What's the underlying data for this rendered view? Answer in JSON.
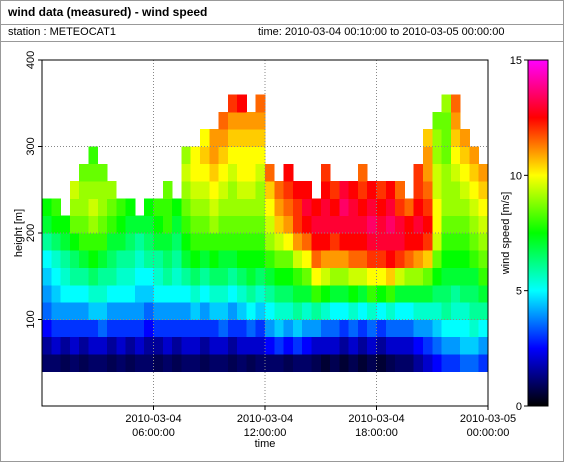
{
  "chart_data": {
    "type": "heatmap",
    "title": "wind data (measured) - wind speed",
    "station": "station : METEOCAT1",
    "period": "time: 2010-03-04 00:10:00 to 2010-03-05 00:00:00",
    "xlabel": "time",
    "ylabel": "height [m]",
    "zlabel": "wind speed [m/s]",
    "xlim": [
      0,
      24
    ],
    "xticks": [
      {
        "value": 6,
        "label": "2010-03-04 06:00:00"
      },
      {
        "value": 12,
        "label": "2010-03-04 12:00:00"
      },
      {
        "value": 18,
        "label": "2010-03-04 18:00:00"
      },
      {
        "value": 24,
        "label": "2010-03-05 00:00:00"
      }
    ],
    "ylim": [
      0,
      400
    ],
    "yticks": [
      100,
      200,
      300,
      400
    ],
    "zlim": [
      0,
      15
    ],
    "zticks": [
      0,
      5,
      10,
      15
    ],
    "grid": true,
    "colors": [
      "#000000",
      "#00007f",
      "#0000ff",
      "#0080ff",
      "#00ffff",
      "#00ff80",
      "#00ff00",
      "#80ff00",
      "#ffff00",
      "#ff8000",
      "#ff0000",
      "#ff0080",
      "#ff00ff"
    ],
    "x": [
      0.25,
      0.75,
      1.25,
      1.75,
      2.25,
      2.75,
      3.25,
      3.75,
      4.25,
      4.75,
      5.25,
      5.75,
      6.25,
      6.75,
      7.25,
      7.75,
      8.25,
      8.75,
      9.25,
      9.75,
      10.25,
      10.75,
      11.25,
      11.75,
      12.25,
      12.75,
      13.25,
      13.75,
      14.25,
      14.75,
      15.25,
      15.75,
      16.25,
      16.75,
      17.25,
      17.75,
      18.25,
      18.75,
      19.25,
      19.75,
      20.25,
      20.75,
      21.25,
      21.75,
      22.25,
      22.75,
      23.25,
      23.75
    ],
    "y": [
      50,
      70,
      90,
      110,
      130,
      150,
      170,
      190,
      210,
      230,
      250,
      270,
      290,
      310,
      330,
      350
    ],
    "z": [
      [
        1,
        1.5,
        2.5,
        3.5,
        4,
        4.5,
        5,
        6,
        7,
        7.5,
        null,
        null,
        null,
        null,
        null,
        null
      ],
      [
        1,
        2,
        3,
        4,
        4.5,
        5,
        5.5,
        6.5,
        7.5,
        8,
        null,
        null,
        null,
        null,
        null,
        null
      ],
      [
        0.8,
        1.5,
        3,
        4,
        5,
        5.5,
        6,
        7,
        7.5,
        null,
        null,
        null,
        null,
        null,
        null,
        null
      ],
      [
        1,
        2,
        3,
        4,
        5,
        6,
        6.5,
        7.5,
        8.5,
        9,
        9.5,
        null,
        null,
        null,
        null,
        null
      ],
      [
        0.8,
        1.5,
        3,
        4,
        5,
        6,
        7,
        8,
        8.5,
        9,
        9,
        8.5,
        null,
        null,
        null,
        null
      ],
      [
        1,
        2,
        3,
        4.5,
        5.5,
        6.5,
        7.5,
        8,
        9,
        9.5,
        9,
        8.5,
        8,
        null,
        null,
        null
      ],
      [
        1,
        2,
        3.5,
        4.5,
        5.5,
        6,
        7,
        8,
        8.5,
        9,
        9,
        8.5,
        null,
        null,
        null,
        null
      ],
      [
        0.8,
        1.5,
        3,
        4,
        5,
        6,
        6.5,
        7,
        8,
        8.5,
        9,
        null,
        null,
        null,
        null,
        null
      ],
      [
        1,
        2,
        3,
        4,
        5,
        5.5,
        6,
        7,
        7.5,
        8,
        null,
        null,
        null,
        null,
        null,
        null
      ],
      [
        0.8,
        1.5,
        3,
        4,
        5,
        5.5,
        6,
        6.5,
        7,
        7.5,
        null,
        null,
        null,
        null,
        null,
        null
      ],
      [
        1,
        2,
        3,
        4,
        4.5,
        5,
        5.5,
        6,
        7,
        null,
        null,
        null,
        null,
        null,
        null,
        null
      ],
      [
        1,
        1.5,
        2.5,
        3.5,
        4.5,
        5,
        6,
        6.5,
        7,
        7.5,
        null,
        null,
        null,
        null,
        null,
        null
      ],
      [
        0.8,
        1.5,
        3,
        4,
        5,
        5.5,
        6,
        7,
        7.5,
        8,
        null,
        null,
        null,
        null,
        null,
        null
      ],
      [
        1,
        2,
        3,
        4,
        5,
        6,
        6.5,
        7,
        8,
        8,
        8.5,
        null,
        null,
        null,
        null,
        null
      ],
      [
        0.8,
        1.5,
        3,
        4,
        5,
        5.5,
        6,
        6.5,
        7,
        7.5,
        null,
        null,
        null,
        null,
        null,
        null
      ],
      [
        1,
        2,
        3,
        4,
        5,
        6,
        7,
        7.5,
        8,
        8.5,
        9,
        9.5,
        9,
        null,
        null,
        null
      ],
      [
        1,
        2,
        3,
        4.5,
        5.5,
        6.5,
        7.5,
        8,
        8.5,
        9,
        9.5,
        10,
        10,
        null,
        null,
        null
      ],
      [
        0.8,
        1.5,
        3,
        4,
        5,
        6,
        7,
        8,
        8.5,
        9,
        9.5,
        10,
        10.5,
        10,
        null,
        null
      ],
      [
        1,
        2,
        3,
        4.5,
        5.5,
        6.5,
        7.5,
        8,
        9,
        9.5,
        10,
        10.5,
        11,
        11,
        null,
        null
      ],
      [
        1,
        2,
        3.5,
        4.5,
        5.5,
        6.5,
        7,
        8,
        8.5,
        9,
        9.5,
        10,
        10.5,
        11,
        11.5,
        null
      ],
      [
        0.8,
        1.5,
        3,
        4,
        5,
        6,
        7,
        8,
        8.5,
        9,
        9,
        9.5,
        10,
        10.5,
        11,
        12
      ],
      [
        1,
        2,
        3,
        4.5,
        5.5,
        6.5,
        7.5,
        8,
        8.5,
        9,
        9.5,
        10,
        10,
        10.5,
        11,
        12.5
      ],
      [
        0.8,
        2,
        3.5,
        5,
        6,
        7,
        7.5,
        8,
        8.5,
        9,
        9.5,
        10,
        10,
        10.5,
        11,
        null
      ],
      [
        1,
        2,
        3,
        4.5,
        5.5,
        6.5,
        7.5,
        8,
        8.5,
        9,
        9,
        9.5,
        10,
        10.5,
        11,
        11.5
      ],
      [
        1,
        2.5,
        4,
        5,
        6,
        7,
        8,
        9,
        9.5,
        10,
        10.5,
        11.5,
        null,
        null,
        null,
        null
      ],
      [
        1,
        3,
        4.5,
        5.5,
        6.5,
        7.5,
        8.5,
        9.5,
        10.5,
        11,
        11.5,
        null,
        null,
        null,
        null,
        null
      ],
      [
        0.8,
        2.5,
        4,
        5.5,
        6.5,
        7.5,
        8.5,
        10,
        11,
        11.5,
        12,
        12.5,
        null,
        null,
        null,
        null
      ],
      [
        1,
        3,
        4.5,
        6,
        7,
        8,
        9.5,
        11,
        12,
        12,
        12.5,
        null,
        null,
        null,
        null,
        null
      ],
      [
        1,
        2.5,
        4,
        5.5,
        7,
        8.5,
        10,
        11.5,
        12.5,
        13,
        12.5,
        null,
        null,
        null,
        null,
        null
      ],
      [
        0.8,
        2,
        4,
        6,
        8,
        10,
        11.5,
        12.5,
        13,
        12.5,
        null,
        null,
        null,
        null,
        null,
        null
      ],
      [
        0.5,
        2,
        3.5,
        5.5,
        7.5,
        9.5,
        11,
        12.5,
        13,
        13,
        12.5,
        12,
        null,
        null,
        null,
        null
      ],
      [
        0.8,
        2,
        3.5,
        5,
        7,
        9,
        11,
        12,
        13,
        12.5,
        12,
        null,
        null,
        null,
        null,
        null
      ],
      [
        0.5,
        1.5,
        3,
        5,
        7,
        9,
        11,
        12.5,
        13,
        13.5,
        13,
        null,
        null,
        null,
        null,
        null
      ],
      [
        0.8,
        2,
        3.5,
        5.5,
        7.5,
        9.5,
        11.5,
        12.5,
        13,
        13,
        12.5,
        null,
        null,
        null,
        null,
        null
      ],
      [
        0.5,
        1.5,
        3,
        5,
        7,
        9.5,
        11.5,
        12.5,
        13,
        12.5,
        12,
        11.5,
        null,
        null,
        null,
        null
      ],
      [
        0.8,
        2,
        3.5,
        5.5,
        8,
        10,
        12,
        13,
        13.5,
        13,
        12.5,
        null,
        null,
        null,
        null,
        null
      ],
      [
        0.5,
        1.5,
        3,
        5,
        7.5,
        10,
        12,
        13,
        13,
        12.5,
        12,
        null,
        null,
        null,
        null,
        null
      ],
      [
        0.8,
        2,
        3.5,
        5.5,
        8,
        10.5,
        12.5,
        13,
        13.5,
        13,
        12.5,
        null,
        null,
        null,
        null,
        null
      ],
      [
        1,
        2,
        3.5,
        5,
        7,
        9.5,
        12,
        13,
        13,
        12,
        11.5,
        null,
        null,
        null,
        null,
        null
      ],
      [
        1,
        2,
        3.5,
        5,
        7,
        9,
        11.5,
        12.5,
        12.5,
        11.5,
        null,
        null,
        null,
        null,
        null,
        null
      ],
      [
        1.5,
        2.5,
        4,
        5.5,
        7,
        9,
        11,
        12.5,
        13,
        12.5,
        12,
        12,
        null,
        null,
        null,
        null
      ],
      [
        2,
        3,
        4,
        5.5,
        7,
        8.5,
        10.5,
        12,
        12.5,
        12,
        11.5,
        11,
        11,
        10.5,
        null,
        null
      ],
      [
        2.5,
        3.5,
        4.5,
        5.5,
        6.5,
        7.5,
        8.5,
        9.5,
        10,
        10,
        9.5,
        9.5,
        9,
        9,
        8.5,
        null
      ],
      [
        3,
        4,
        5,
        6,
        6.5,
        7,
        7.5,
        8,
        8.5,
        9,
        9,
        9,
        8.5,
        8.5,
        8.5,
        9
      ],
      [
        3,
        4,
        5,
        5.5,
        6,
        7,
        7.5,
        8,
        8.5,
        9,
        9,
        9.5,
        10,
        10.5,
        11,
        11.5
      ],
      [
        3.5,
        4.5,
        5,
        5.5,
        6.5,
        7,
        7.5,
        8,
        8.5,
        9,
        9.5,
        10,
        10.5,
        11,
        null,
        null
      ],
      [
        3.5,
        4.5,
        5.5,
        6,
        6.5,
        7,
        8,
        8.5,
        9,
        9.5,
        10,
        10.5,
        11,
        null,
        null,
        null
      ],
      [
        3,
        4,
        5,
        6,
        7,
        8,
        8.5,
        9,
        9.5,
        10,
        10.5,
        11,
        null,
        null,
        null,
        null
      ]
    ]
  }
}
